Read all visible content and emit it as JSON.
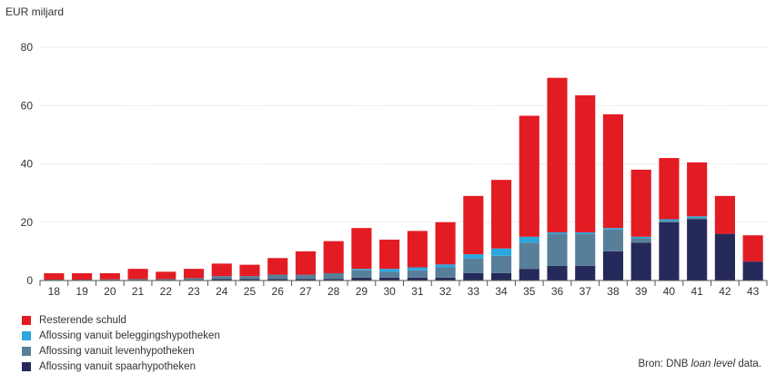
{
  "colors": {
    "resterende": "#e31c23",
    "beleggings": "#2aa7df",
    "leven": "#587f99",
    "spaar": "#252a5a",
    "grid": "#cfcfcf",
    "axis": "#555555"
  },
  "chart_data": {
    "type": "bar",
    "stacked": true,
    "unit_label": "EUR miljard",
    "categories": [
      "18",
      "19",
      "20",
      "21",
      "22",
      "23",
      "24",
      "25",
      "26",
      "27",
      "28",
      "29",
      "30",
      "31",
      "32",
      "33",
      "34",
      "35",
      "36",
      "37",
      "38",
      "39",
      "40",
      "41",
      "42",
      "43"
    ],
    "ylim": [
      0,
      80
    ],
    "yticks": [
      0,
      20,
      40,
      60,
      80
    ],
    "grid": true,
    "legend_position": "bottom-left",
    "series": [
      {
        "name": "Aflossing vanuit spaarhypotheken",
        "color_key": "spaar",
        "values": [
          0,
          0,
          0,
          0,
          0,
          0,
          0.5,
          0.5,
          0.5,
          0.5,
          0.5,
          1,
          1,
          1,
          1,
          2.5,
          2.5,
          4,
          5,
          5,
          10,
          13,
          20,
          21,
          16,
          6.5
        ]
      },
      {
        "name": "Aflossing vanuit levenhypotheken",
        "color_key": "leven",
        "values": [
          0.3,
          0.3,
          0.4,
          0.5,
          0.5,
          0.8,
          1,
          1,
          1.5,
          1.5,
          2,
          2.5,
          2,
          2.5,
          3.5,
          5,
          6,
          9,
          11,
          11,
          7.5,
          1.5,
          0.5,
          0.5,
          0,
          0
        ]
      },
      {
        "name": "Aflossing vanuit beleggingshypotheken",
        "color_key": "beleggings",
        "values": [
          0,
          0,
          0,
          0,
          0,
          0,
          0,
          0,
          0,
          0,
          0,
          0.5,
          1,
          1,
          1,
          1.5,
          2.5,
          2,
          0.5,
          0.5,
          0.5,
          0.5,
          0.5,
          0.5,
          0,
          0
        ]
      },
      {
        "name": "Resterende schuld",
        "color_key": "resterende",
        "values": [
          2.2,
          2.2,
          2.1,
          3.5,
          2.5,
          3.2,
          4.3,
          3.9,
          5.7,
          8,
          11,
          14,
          10,
          12.5,
          14.5,
          20,
          23.5,
          41.5,
          53,
          47,
          39,
          23,
          21,
          18.5,
          13,
          9
        ]
      }
    ]
  },
  "legend_order": [
    3,
    2,
    1,
    0
  ],
  "source": {
    "prefix": "Bron: DNB ",
    "italic": "loan level",
    "suffix": " data."
  }
}
